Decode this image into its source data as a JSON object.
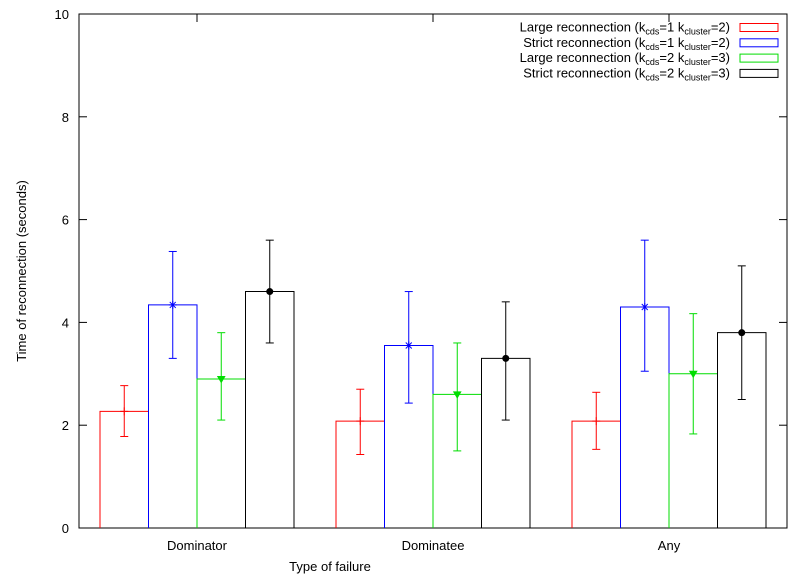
{
  "chart_data": {
    "type": "bar",
    "xlabel": "Type of failure",
    "ylabel": "Time of reconnection (seconds)",
    "ylim": [
      0,
      10
    ],
    "yticks": [
      "0",
      "2",
      "4",
      "6",
      "8",
      "10"
    ],
    "grid": false,
    "legend_position": "top-right",
    "categories": [
      "Dominator",
      "Dominatee",
      "Any"
    ],
    "series": [
      {
        "name": "Large reconnection (k_cds=1 k_cluster=2)",
        "legend": {
          "pre": "Large reconnection (k",
          "sub1": "cds",
          "mid": "=1 k",
          "sub2": "cluster",
          "post": "=2)"
        },
        "color": "#ff0000",
        "marker": "plus",
        "values": [
          2.27,
          2.08,
          2.08
        ],
        "err_low": [
          1.78,
          1.43,
          1.53
        ],
        "err_high": [
          2.77,
          2.7,
          2.64
        ]
      },
      {
        "name": "Strict reconnection (k_cds=1 k_cluster=2)",
        "legend": {
          "pre": "Strict reconnection (k",
          "sub1": "cds",
          "mid": "=1 k",
          "sub2": "cluster",
          "post": "=2)"
        },
        "color": "#0000ff",
        "marker": "star",
        "values": [
          4.34,
          3.55,
          4.3
        ],
        "err_low": [
          3.3,
          2.43,
          3.05
        ],
        "err_high": [
          5.38,
          4.6,
          5.6
        ]
      },
      {
        "name": "Large reconnection (k_cds=2 k_cluster=3)",
        "legend": {
          "pre": "Large reconnection (k",
          "sub1": "cds",
          "mid": "=2 k",
          "sub2": "cluster",
          "post": "=3)"
        },
        "color": "#00dd00",
        "marker": "triangle",
        "values": [
          2.9,
          2.6,
          3.0
        ],
        "err_low": [
          2.1,
          1.5,
          1.83
        ],
        "err_high": [
          3.8,
          3.6,
          4.17
        ]
      },
      {
        "name": "Strict reconnection (k_cds=2 k_cluster=3)",
        "legend": {
          "pre": "Strict reconnection (k",
          "sub1": "cds",
          "mid": "=2 k",
          "sub2": "cluster",
          "post": "=3)"
        },
        "color": "#000000",
        "marker": "dot",
        "values": [
          4.6,
          3.3,
          3.8
        ],
        "err_low": [
          3.6,
          2.1,
          2.5
        ],
        "err_high": [
          5.6,
          4.4,
          5.1
        ]
      }
    ]
  }
}
